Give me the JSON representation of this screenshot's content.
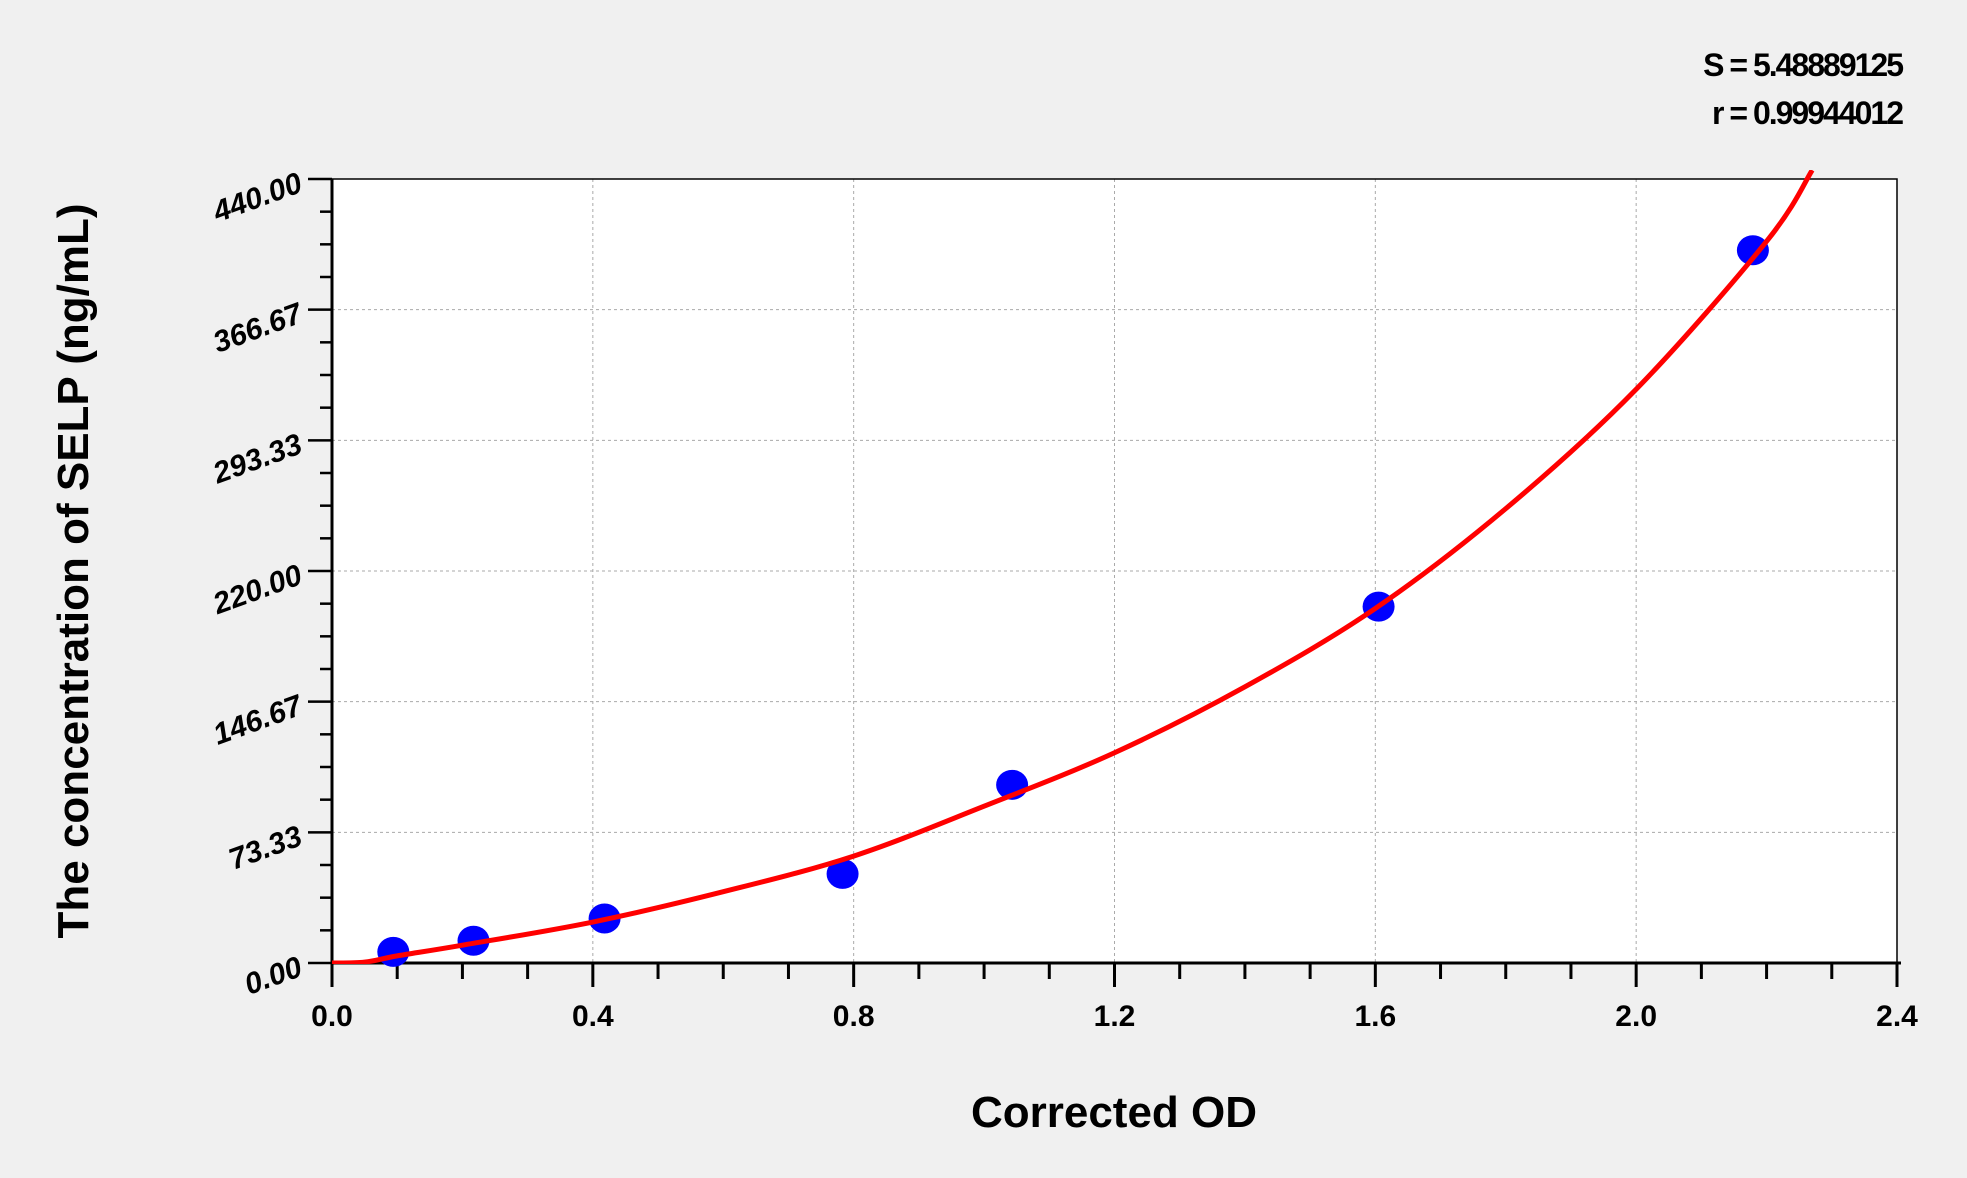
{
  "chart_data": {
    "type": "scatter",
    "xlabel": "Corrected OD",
    "ylabel": "The concentration of SELP (ng/mL)",
    "xlim": [
      0,
      2.4
    ],
    "ylim": [
      0,
      440
    ],
    "xticks": [
      "0.0",
      "0.4",
      "0.8",
      "1.2",
      "1.6",
      "2.0",
      "2.4"
    ],
    "yticks": [
      "0.00",
      "73.33",
      "146.67",
      "220.00",
      "293.33",
      "366.67",
      "440.00"
    ],
    "grid": true,
    "annotations": {
      "s": "S = 5.48889125",
      "r": "r = 0.99944012"
    },
    "points": {
      "x": [
        0.094,
        0.217,
        0.418,
        0.783,
        1.043,
        1.605,
        2.179
      ],
      "y": [
        6.25,
        12.5,
        25,
        50,
        100,
        200,
        400
      ],
      "color": "#0000ff"
    },
    "fit_curve": {
      "x": [
        0,
        0.05,
        0.1,
        0.2,
        0.4,
        0.6,
        0.8,
        1.0,
        1.2,
        1.4,
        1.6,
        1.8,
        2.0,
        2.2,
        2.27
      ],
      "y": [
        0,
        0.5,
        4,
        10,
        23,
        40,
        60,
        88,
        118,
        155,
        199,
        255,
        322,
        405,
        445
      ],
      "color": "#ff0000"
    }
  }
}
